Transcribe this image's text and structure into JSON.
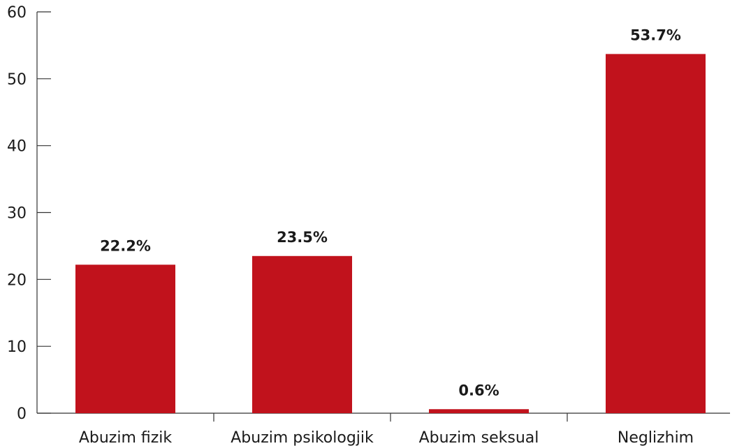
{
  "chart_data": {
    "type": "bar",
    "categories": [
      "Abuzim fizik",
      "Abuzim psikologjik",
      "Abuzim seksual",
      "Neglizhim"
    ],
    "values": [
      22.2,
      23.5,
      0.6,
      53.7
    ],
    "data_labels": [
      "22.2%",
      "23.5%",
      "0.6%",
      "53.7%"
    ],
    "ylim": [
      0,
      60
    ],
    "yticks": [
      0,
      10,
      20,
      30,
      40,
      50,
      60
    ],
    "title": "",
    "xlabel": "",
    "ylabel": "",
    "grid": false,
    "bar_color": "#c1121c"
  }
}
